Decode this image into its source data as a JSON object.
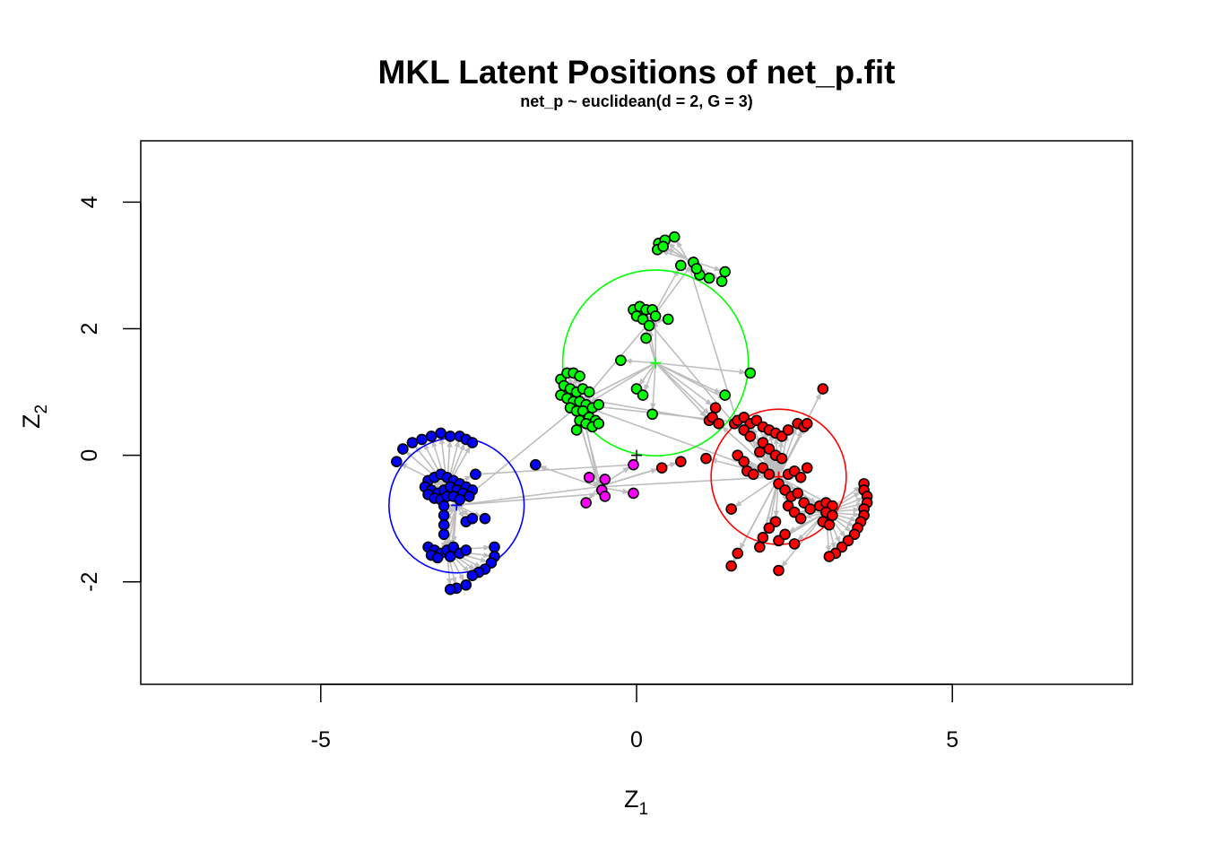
{
  "chart_data": {
    "type": "scatter",
    "title": "MKL Latent Positions of net_p.fit",
    "subtitle": "net_p ~ euclidean(d = 2, G = 3)",
    "xlabel_base": "Z",
    "xlabel_sub": "1",
    "ylabel_base": "Z",
    "ylabel_sub": "2",
    "xlim": [
      -7.85,
      7.85
    ],
    "ylim": [
      -3.62,
      4.97
    ],
    "xticks": [
      -5,
      0,
      5
    ],
    "yticks": [
      -2,
      0,
      2,
      4
    ],
    "xtick_labels": [
      "-5",
      "0",
      "5"
    ],
    "ytick_labels": [
      "-2",
      "0",
      "2",
      "4"
    ],
    "grid": false,
    "edge_color": "#bebebe",
    "clusters": [
      {
        "color": "#ff0000",
        "center": [
          2.25,
          -0.34
        ],
        "radius": 1.07
      },
      {
        "color": "#00ff00",
        "center": [
          0.3,
          1.46
        ],
        "radius": 1.47
      },
      {
        "color": "#0000ff",
        "center": [
          -2.85,
          -0.79
        ],
        "radius": 1.07
      }
    ],
    "series": [
      {
        "color": "#0000ff",
        "points": [
          [
            -3.8,
            -0.1
          ],
          [
            -3.7,
            0.1
          ],
          [
            -3.55,
            0.2
          ],
          [
            -3.4,
            0.25
          ],
          [
            -3.25,
            0.3
          ],
          [
            -3.1,
            0.35
          ],
          [
            -2.95,
            0.3
          ],
          [
            -2.8,
            0.3
          ],
          [
            -2.7,
            0.25
          ],
          [
            -2.6,
            0.2
          ],
          [
            -3.3,
            -0.4
          ],
          [
            -3.2,
            -0.35
          ],
          [
            -3.1,
            -0.3
          ],
          [
            -3.0,
            -0.35
          ],
          [
            -2.9,
            -0.4
          ],
          [
            -2.8,
            -0.45
          ],
          [
            -2.7,
            -0.5
          ],
          [
            -2.6,
            -0.55
          ],
          [
            -3.35,
            -0.5
          ],
          [
            -3.25,
            -0.55
          ],
          [
            -3.15,
            -0.6
          ],
          [
            -3.05,
            -0.55
          ],
          [
            -2.95,
            -0.5
          ],
          [
            -2.85,
            -0.55
          ],
          [
            -2.75,
            -0.6
          ],
          [
            -2.65,
            -0.65
          ],
          [
            -3.3,
            -0.62
          ],
          [
            -3.2,
            -0.68
          ],
          [
            -3.1,
            -0.7
          ],
          [
            -3.0,
            -0.65
          ],
          [
            -2.9,
            -0.65
          ],
          [
            -2.8,
            -0.7
          ],
          [
            -3.05,
            -0.8
          ],
          [
            -3.05,
            -0.95
          ],
          [
            -3.05,
            -1.1
          ],
          [
            -3.05,
            -1.25
          ],
          [
            -2.7,
            -1.05
          ],
          [
            -2.6,
            -1.0
          ],
          [
            -2.4,
            -1.0
          ],
          [
            -2.55,
            -0.3
          ],
          [
            -3.3,
            -1.45
          ],
          [
            -3.2,
            -1.5
          ],
          [
            -3.1,
            -1.55
          ],
          [
            -3.0,
            -1.5
          ],
          [
            -2.9,
            -1.45
          ],
          [
            -2.8,
            -1.55
          ],
          [
            -2.7,
            -1.5
          ],
          [
            -3.25,
            -1.58
          ],
          [
            -3.15,
            -1.62
          ],
          [
            -2.95,
            -1.6
          ],
          [
            -2.25,
            -1.45
          ],
          [
            -2.25,
            -1.6
          ],
          [
            -2.3,
            -1.7
          ],
          [
            -2.4,
            -1.8
          ],
          [
            -2.5,
            -1.85
          ],
          [
            -2.6,
            -1.9
          ],
          [
            -2.7,
            -2.05
          ],
          [
            -2.85,
            -2.1
          ],
          [
            -2.95,
            -2.12
          ],
          [
            -1.6,
            -0.15
          ]
        ]
      },
      {
        "color": "#00ff00",
        "points": [
          [
            0.35,
            3.35
          ],
          [
            0.45,
            3.4
          ],
          [
            0.6,
            3.45
          ],
          [
            0.33,
            3.25
          ],
          [
            0.42,
            3.3
          ],
          [
            0.7,
            3.0
          ],
          [
            0.9,
            3.05
          ],
          [
            1.0,
            2.85
          ],
          [
            1.15,
            2.8
          ],
          [
            1.35,
            2.75
          ],
          [
            1.4,
            2.9
          ],
          [
            0.95,
            2.95
          ],
          [
            -0.05,
            2.3
          ],
          [
            0.05,
            2.35
          ],
          [
            0.15,
            2.3
          ],
          [
            0.25,
            2.3
          ],
          [
            0.0,
            2.2
          ],
          [
            0.1,
            2.15
          ],
          [
            0.3,
            2.2
          ],
          [
            0.5,
            2.15
          ],
          [
            0.2,
            2.05
          ],
          [
            0.15,
            1.85
          ],
          [
            -0.25,
            1.5
          ],
          [
            -1.2,
            1.2
          ],
          [
            -1.1,
            1.3
          ],
          [
            -1.0,
            1.3
          ],
          [
            -0.9,
            1.25
          ],
          [
            -1.15,
            1.1
          ],
          [
            -1.05,
            1.05
          ],
          [
            -0.95,
            1.0
          ],
          [
            -0.85,
            1.05
          ],
          [
            -0.75,
            1.0
          ],
          [
            -1.2,
            0.95
          ],
          [
            -1.1,
            0.9
          ],
          [
            -1.0,
            0.85
          ],
          [
            -0.9,
            0.85
          ],
          [
            -0.8,
            0.8
          ],
          [
            -0.7,
            0.75
          ],
          [
            -0.6,
            0.8
          ],
          [
            -1.05,
            0.75
          ],
          [
            -0.95,
            0.7
          ],
          [
            -0.85,
            0.7
          ],
          [
            -0.75,
            0.6
          ],
          [
            -0.65,
            0.55
          ],
          [
            -0.9,
            0.55
          ],
          [
            -0.8,
            0.5
          ],
          [
            -0.7,
            0.45
          ],
          [
            -0.95,
            0.4
          ],
          [
            -0.6,
            0.5
          ],
          [
            1.8,
            1.3
          ],
          [
            1.4,
            0.95
          ],
          [
            0.0,
            1.05
          ],
          [
            0.1,
            0.95
          ],
          [
            0.25,
            0.65
          ]
        ]
      },
      {
        "color": "#ff0000",
        "points": [
          [
            2.95,
            1.05
          ],
          [
            1.15,
            0.55
          ],
          [
            1.2,
            0.6
          ],
          [
            1.3,
            0.5
          ],
          [
            1.25,
            0.75
          ],
          [
            1.55,
            0.5
          ],
          [
            1.6,
            0.55
          ],
          [
            1.7,
            0.6
          ],
          [
            1.8,
            0.5
          ],
          [
            1.9,
            0.55
          ],
          [
            2.0,
            0.45
          ],
          [
            2.1,
            0.4
          ],
          [
            2.2,
            0.35
          ],
          [
            2.3,
            0.3
          ],
          [
            2.4,
            0.4
          ],
          [
            2.55,
            0.5
          ],
          [
            2.65,
            0.45
          ],
          [
            2.7,
            0.5
          ],
          [
            1.7,
            0.4
          ],
          [
            1.8,
            0.3
          ],
          [
            2.0,
            0.2
          ],
          [
            2.1,
            0.1
          ],
          [
            2.2,
            0.0
          ],
          [
            2.3,
            -0.05
          ],
          [
            1.6,
            0.0
          ],
          [
            1.7,
            -0.1
          ],
          [
            1.75,
            -0.25
          ],
          [
            1.85,
            -0.3
          ],
          [
            2.0,
            -0.2
          ],
          [
            2.1,
            -0.3
          ],
          [
            2.25,
            -0.45
          ],
          [
            2.4,
            -0.3
          ],
          [
            2.5,
            -0.25
          ],
          [
            2.6,
            -0.35
          ],
          [
            2.7,
            -0.2
          ],
          [
            2.35,
            -0.55
          ],
          [
            2.45,
            -0.65
          ],
          [
            2.55,
            -0.6
          ],
          [
            2.65,
            -0.75
          ],
          [
            2.75,
            -0.85
          ],
          [
            2.4,
            -0.8
          ],
          [
            2.5,
            -0.9
          ],
          [
            2.6,
            -1.0
          ],
          [
            2.2,
            -1.05
          ],
          [
            2.1,
            -1.15
          ],
          [
            2.0,
            -1.3
          ],
          [
            1.95,
            -1.45
          ],
          [
            2.25,
            -1.35
          ],
          [
            2.35,
            -1.25
          ],
          [
            2.5,
            -1.4
          ],
          [
            1.5,
            -0.85
          ],
          [
            1.5,
            -1.75
          ],
          [
            1.6,
            -1.55
          ],
          [
            2.25,
            -1.82
          ],
          [
            2.9,
            -0.8
          ],
          [
            3.0,
            -0.75
          ],
          [
            3.1,
            -0.8
          ],
          [
            3.0,
            -0.9
          ],
          [
            3.1,
            -0.95
          ],
          [
            2.95,
            -1.05
          ],
          [
            3.05,
            -1.1
          ],
          [
            3.6,
            -0.45
          ],
          [
            3.6,
            -0.55
          ],
          [
            3.65,
            -0.65
          ],
          [
            3.65,
            -0.75
          ],
          [
            3.6,
            -0.85
          ],
          [
            3.6,
            -0.95
          ],
          [
            3.55,
            -1.05
          ],
          [
            3.5,
            -1.15
          ],
          [
            3.45,
            -1.25
          ],
          [
            3.35,
            -1.35
          ],
          [
            3.25,
            -1.45
          ],
          [
            3.15,
            -1.55
          ],
          [
            3.05,
            -1.6
          ],
          [
            1.1,
            -0.05
          ],
          [
            0.7,
            -0.1
          ],
          [
            0.4,
            -0.2
          ],
          [
            1.95,
            0.05
          ]
        ]
      },
      {
        "color": "#ff00ff",
        "points": [
          [
            -0.5,
            -0.38
          ],
          [
            -0.55,
            -0.55
          ],
          [
            -0.5,
            -0.65
          ],
          [
            -0.75,
            -0.35
          ],
          [
            -0.8,
            -0.75
          ],
          [
            -0.05,
            -0.15
          ],
          [
            -0.05,
            -0.6
          ]
        ]
      }
    ]
  }
}
